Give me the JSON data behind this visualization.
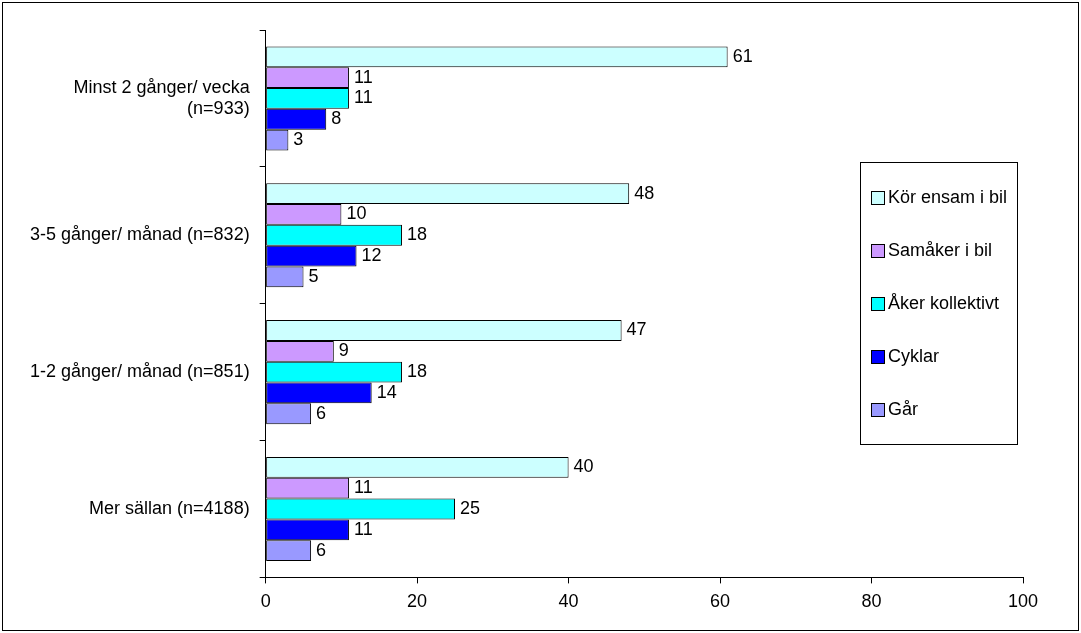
{
  "chart_data": {
    "type": "bar",
    "orientation": "horizontal",
    "categories": [
      "Minst 2 gånger/ vecka (n=933)",
      "3-5 gånger/ månad (n=832)",
      "1-2 gånger/ månad (n=851)",
      "Mer sällan (n=4188)"
    ],
    "series": [
      {
        "name": "Kör ensam i bil",
        "color": "#ccffff",
        "values": [
          61,
          48,
          47,
          40
        ]
      },
      {
        "name": "Samåker i bil",
        "color": "#cc99ff",
        "values": [
          11,
          10,
          9,
          11
        ]
      },
      {
        "name": "Åker kollektivt",
        "color": "#00ffff",
        "values": [
          11,
          18,
          18,
          25
        ]
      },
      {
        "name": "Cyklar",
        "color": "#0000ff",
        "values": [
          8,
          12,
          14,
          11
        ]
      },
      {
        "name": "Går",
        "color": "#9999ff",
        "values": [
          3,
          5,
          6,
          6
        ]
      }
    ],
    "xlim": [
      0,
      100
    ],
    "xticks": [
      0,
      20,
      40,
      60,
      80,
      100
    ],
    "grid": false,
    "legend": "right",
    "data_labels": true
  }
}
